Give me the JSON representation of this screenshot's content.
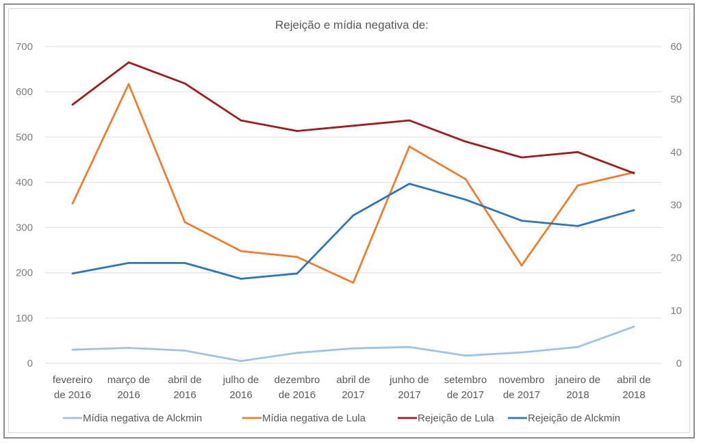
{
  "chart_data": {
    "type": "line",
    "title": "Rejeição e mídia negativa de:",
    "categories": [
      [
        "fevereiro",
        "de 2016"
      ],
      [
        "março de",
        "2016"
      ],
      [
        "abril de",
        "2016"
      ],
      [
        "julho de",
        "2016"
      ],
      [
        "dezembro",
        "de 2016"
      ],
      [
        "abril de",
        "2017"
      ],
      [
        "junho de",
        "2017"
      ],
      [
        "setembro",
        "de 2017"
      ],
      [
        "novembro",
        "de 2017"
      ],
      [
        "janeiro de",
        "2018"
      ],
      [
        "abril de",
        "2018"
      ]
    ],
    "y_left": {
      "ylim": [
        0,
        700
      ],
      "ticks": [
        "0",
        "100",
        "200",
        "300",
        "400",
        "500",
        "600",
        "700"
      ]
    },
    "y_right": {
      "ylim": [
        0,
        60
      ],
      "ticks": [
        "0",
        "10",
        "20",
        "30",
        "40",
        "50",
        "60"
      ]
    },
    "grid": true,
    "legend_position": "bottom",
    "series": [
      {
        "name": "Mídia negativa de Alckmin",
        "axis": "left",
        "color": "#9dc3e6",
        "values": [
          30,
          34,
          28,
          5,
          23,
          33,
          36,
          17,
          24,
          36,
          81
        ]
      },
      {
        "name": "Mídia negativa de Lula",
        "axis": "left",
        "color": "#ed7d31",
        "values": [
          353,
          617,
          312,
          248,
          235,
          178,
          479,
          407,
          216,
          393,
          422
        ]
      },
      {
        "name": "Rejeição de Lula",
        "axis": "right",
        "color": "#9e1b1e",
        "values": [
          49,
          57,
          53,
          46,
          44,
          45,
          46,
          42,
          39,
          40,
          36
        ]
      },
      {
        "name": "Rejeição de Alckmin",
        "axis": "right",
        "color": "#2e75b6",
        "values": [
          17,
          19,
          19,
          16,
          17,
          28,
          34,
          31,
          27,
          26,
          29
        ]
      }
    ]
  }
}
